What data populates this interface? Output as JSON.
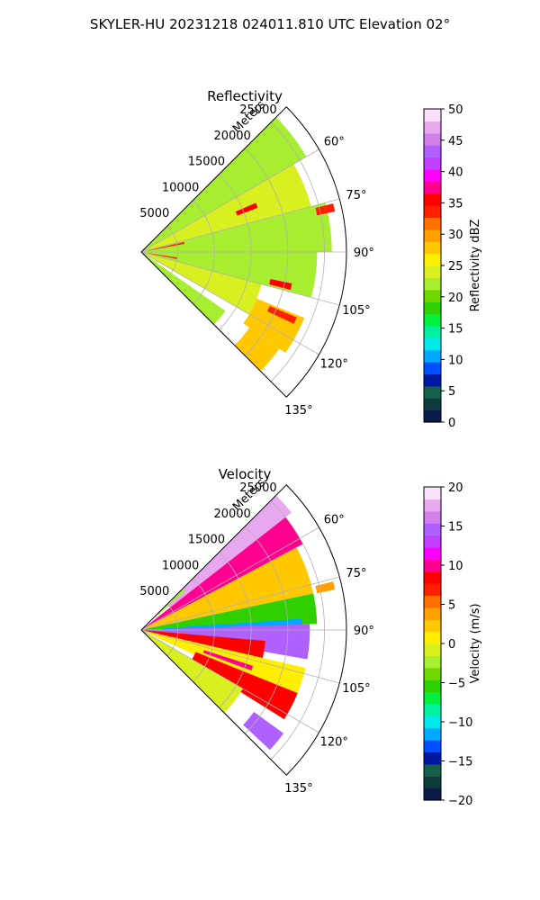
{
  "title": "SKYLER-HU  20231218  024011.810 UTC Elevation 02°",
  "chart_data": [
    {
      "type": "heatmap",
      "title": "Reflectivity",
      "projection": "polar sector (PPI)",
      "azimuth_range_deg": [
        45,
        135
      ],
      "azimuth_ticks": [
        "60°",
        "75°",
        "90°",
        "105°",
        "120°",
        "135°"
      ],
      "azimuth_tick_values": [
        60,
        75,
        90,
        105,
        120,
        135
      ],
      "range_axis_label": "Meters",
      "range_ticks": [
        "5000",
        "10000",
        "15000",
        "20000",
        "25000"
      ],
      "range_tick_values": [
        5000,
        10000,
        15000,
        20000,
        25000
      ],
      "rmax": 28000,
      "grid": true,
      "colorbar": {
        "label": "Reflectivity dBZ",
        "range": [
          0,
          50
        ],
        "ticks": [
          "0",
          "5",
          "10",
          "15",
          "20",
          "25",
          "30",
          "35",
          "40",
          "45",
          "50"
        ],
        "tick_values": [
          0,
          5,
          10,
          15,
          20,
          25,
          30,
          35,
          40,
          45,
          50
        ],
        "colors": [
          "#0a1a4a",
          "#0c3a3a",
          "#16604a",
          "#0018a0",
          "#0050ff",
          "#00a8ff",
          "#00e8e8",
          "#00f0a0",
          "#00f040",
          "#30d000",
          "#70d800",
          "#a8ee30",
          "#d8f020",
          "#ffee00",
          "#ffc800",
          "#ffa000",
          "#ff7000",
          "#ff2000",
          "#ff0000",
          "#ff0090",
          "#ff00ff",
          "#c040ff",
          "#b060ff",
          "#d080e8",
          "#e8a8f0",
          "#fbe0fb"
        ]
      },
      "sectors": [
        {
          "az": [
            45,
            60
          ],
          "r": [
            0,
            26000
          ],
          "value": 22
        },
        {
          "az": [
            60,
            75
          ],
          "r": [
            0,
            24000
          ],
          "value": 24
        },
        {
          "az": [
            75,
            90
          ],
          "r": [
            0,
            26000
          ],
          "value": 23
        },
        {
          "az": [
            90,
            105
          ],
          "r": [
            0,
            24000
          ],
          "value": 22
        },
        {
          "az": [
            105,
            120
          ],
          "r": [
            0,
            17000
          ],
          "value": 24
        },
        {
          "az": [
            112,
            125
          ],
          "r": [
            17000,
            24000
          ],
          "value": 27
        },
        {
          "az": [
            125,
            135
          ],
          "r": [
            0,
            14000
          ],
          "value": 22
        },
        {
          "az": [
            125,
            135
          ],
          "r": [
            18000,
            23000
          ],
          "value": 28
        }
      ],
      "highlights": [
        {
          "az": 78,
          "r": [
            1000,
            6000
          ],
          "value": 34
        },
        {
          "az": 100,
          "r": [
            1000,
            5000
          ],
          "value": 33
        },
        {
          "az": 68,
          "r": [
            14000,
            17000
          ],
          "value": 36
        },
        {
          "az": 114,
          "r": [
            19000,
            23000
          ],
          "value": 34
        },
        {
          "az": 77,
          "r": [
            24500,
            27000
          ],
          "value": 34
        },
        {
          "az": 103,
          "r": [
            18000,
            21000
          ],
          "value": 35
        }
      ]
    },
    {
      "type": "heatmap",
      "title": "Velocity",
      "projection": "polar sector (PPI)",
      "azimuth_range_deg": [
        45,
        135
      ],
      "azimuth_ticks": [
        "60°",
        "75°",
        "90°",
        "105°",
        "120°",
        "135°"
      ],
      "azimuth_tick_values": [
        60,
        75,
        90,
        105,
        120,
        135
      ],
      "range_axis_label": "Meters",
      "range_ticks": [
        "5000",
        "10000",
        "15000",
        "20000",
        "25000"
      ],
      "range_tick_values": [
        5000,
        10000,
        15000,
        20000,
        25000
      ],
      "rmax": 28000,
      "grid": true,
      "colorbar": {
        "label": "Velocity (m/s)",
        "range": [
          -20,
          20
        ],
        "ticks": [
          "−20",
          "−15",
          "−10",
          "−5",
          "0",
          "5",
          "10",
          "15",
          "20"
        ],
        "tick_values": [
          -20,
          -15,
          -10,
          -5,
          0,
          5,
          10,
          15,
          20
        ],
        "colors": [
          "#0a1a4a",
          "#0c3a3a",
          "#16604a",
          "#0018a0",
          "#0050ff",
          "#00a8ff",
          "#00e8e8",
          "#00f0a0",
          "#00f040",
          "#30d000",
          "#70d800",
          "#a8ee30",
          "#d8f020",
          "#ffee00",
          "#ffc800",
          "#ffa000",
          "#ff7000",
          "#ff2000",
          "#ff0000",
          "#ff0090",
          "#ff00ff",
          "#c040ff",
          "#b060ff",
          "#d080e8",
          "#e8a8f0",
          "#fbe0fb"
        ]
      },
      "sectors": [
        {
          "az": [
            45,
            52
          ],
          "r": [
            5000,
            26000
          ],
          "value": 17
        },
        {
          "az": [
            52,
            62
          ],
          "r": [
            0,
            25000
          ],
          "value": 10
        },
        {
          "az": [
            62,
            78
          ],
          "r": [
            0,
            24000
          ],
          "value": 2
        },
        {
          "az": [
            78,
            88
          ],
          "r": [
            0,
            24000
          ],
          "value": -5
        },
        {
          "az": [
            86,
            94
          ],
          "r": [
            3000,
            22000
          ],
          "value": -11
        },
        {
          "az": [
            88,
            100
          ],
          "r": [
            0,
            23000
          ],
          "value": 14
        },
        {
          "az": [
            95,
            103
          ],
          "r": [
            0,
            17000
          ],
          "value": 9
        },
        {
          "az": [
            103,
            115
          ],
          "r": [
            0,
            23000
          ],
          "value": 1
        },
        {
          "az": [
            112,
            122
          ],
          "r": [
            8000,
            23000
          ],
          "value": 9
        },
        {
          "az": [
            120,
            135
          ],
          "r": [
            0,
            16000
          ],
          "value": -1
        },
        {
          "az": [
            126,
            133
          ],
          "r": [
            19000,
            24000
          ],
          "value": 14
        }
      ],
      "highlights": [
        {
          "az": 47,
          "r": [
            3000,
            8000
          ],
          "value": -2
        },
        {
          "az": 77,
          "r": [
            24500,
            27000
          ],
          "value": 4
        },
        {
          "az": 109,
          "r": [
            9000,
            16000
          ],
          "value": 10
        }
      ]
    }
  ]
}
